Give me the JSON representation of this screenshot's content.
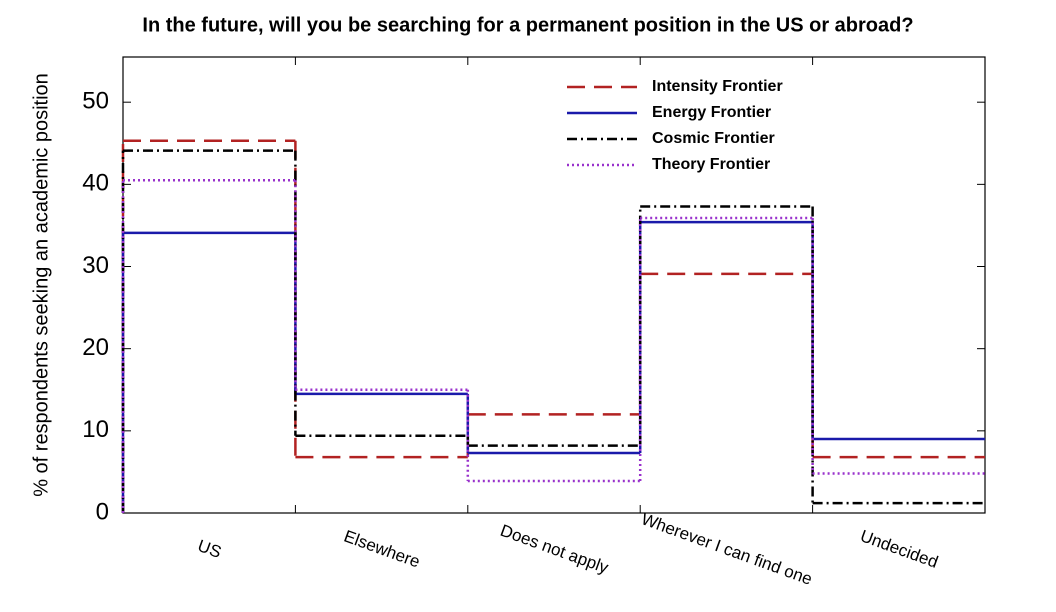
{
  "chart_data": {
    "type": "step",
    "title": "In the future, will you be searching for a permanent position in the US or abroad?",
    "y_label": "% of respondents seeking an academic position",
    "categories": [
      "US",
      "Elsewhere",
      "Does not apply",
      "Wherever I can find one",
      "Undecided"
    ],
    "ylim": [
      0,
      55.5
    ],
    "yticks": [
      0,
      10,
      20,
      30,
      40,
      50
    ],
    "legend": "top right",
    "series": [
      {
        "name": "Intensity Frontier",
        "color": "#b22222",
        "dash": "dashed",
        "values": [
          45.3,
          6.8,
          12.0,
          29.1,
          6.8
        ]
      },
      {
        "name": "Energy Frontier",
        "color": "#1a1aaa",
        "dash": "solid",
        "values": [
          34.1,
          14.5,
          7.3,
          35.4,
          9.0
        ]
      },
      {
        "name": "Cosmic Frontier",
        "color": "#000000",
        "dash": "dashdot",
        "values": [
          44.1,
          9.4,
          8.2,
          37.3,
          1.2
        ]
      },
      {
        "name": "Theory Frontier",
        "color": "#9932cc",
        "dash": "dotted",
        "values": [
          40.5,
          15.0,
          3.9,
          35.9,
          4.8
        ]
      }
    ]
  }
}
